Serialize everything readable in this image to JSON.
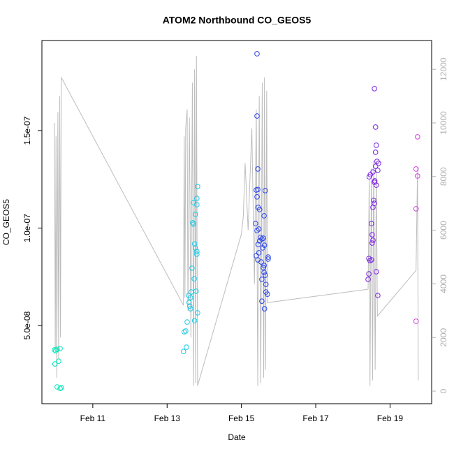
{
  "chart_data": {
    "type": "scatter",
    "title": "ATOM2 Northbound CO_GEOS5",
    "x_label": "Date",
    "y_label": "CO_GEOS5",
    "xlim": [
      9.63,
      20.12
    ],
    "xticks": [
      {
        "value": 11,
        "label": "Feb 11"
      },
      {
        "value": 13,
        "label": "Feb 13"
      },
      {
        "value": 15,
        "label": "Feb 15"
      },
      {
        "value": 17,
        "label": "Feb 17"
      },
      {
        "value": 19,
        "label": "Feb 19"
      }
    ],
    "ylim": [
      9.9e-09,
      1.962e-07
    ],
    "yticks": [
      {
        "value": 5e-08,
        "label": "5.0e-08"
      },
      {
        "value": 1e-07,
        "label": "1.0e-07"
      },
      {
        "value": 1.5e-07,
        "label": "1.5e-07"
      }
    ],
    "y2lim": [
      -469,
      13073
    ],
    "y2ticks": [
      0,
      2000,
      4000,
      6000,
      8000,
      10000,
      12000
    ],
    "y2_tick_color": "#b0b0b0",
    "series": [
      {
        "axis": "y2",
        "color": "#bdbdbd",
        "x": [
          9.97,
          9.99,
          10.01,
          10.03,
          10.06,
          10.08,
          10.11,
          10.13,
          10.15,
          13.44,
          13.46,
          13.48,
          13.5,
          13.54,
          13.56,
          13.6,
          13.64,
          13.68,
          13.71,
          13.74,
          13.77,
          13.79,
          13.82,
          15.0,
          15.05,
          15.1,
          15.18,
          15.28,
          15.35,
          15.4,
          15.44,
          15.48,
          15.52,
          15.56,
          15.6,
          15.62,
          15.65,
          15.68,
          15.7,
          18.41,
          18.44,
          18.46,
          18.5,
          18.53,
          18.56,
          18.6,
          18.63,
          18.66,
          19.7,
          19.74,
          19.76
        ],
        "values": [
          10000,
          1500,
          9500,
          500,
          10400,
          1200,
          11000,
          2000,
          11700,
          3200,
          9500,
          3500,
          9800,
          10500,
          3000,
          10200,
          2000,
          11500,
          200,
          12000,
          300,
          12500,
          200,
          5860,
          6500,
          8500,
          6000,
          9800,
          4000,
          10500,
          200,
          11000,
          300,
          11500,
          500,
          11700,
          800,
          11200,
          3300,
          3800,
          7900,
          200,
          8300,
          400,
          8600,
          800,
          8200,
          2800,
          4500,
          8300,
          400
        ]
      },
      {
        "color": "#00e6b8",
        "x": [
          9.97,
          10.0,
          10.04,
          9.98,
          10.08,
          10.12,
          10.04,
          10.12,
          10.15
        ],
        "values": [
          3.75e-08,
          3.71e-08,
          3.78e-08,
          3.03e-08,
          3.17e-08,
          3.82e-08,
          1.85e-08,
          1.77e-08,
          1.81e-08
        ]
      },
      {
        "color": "#1ec8e6",
        "x": [
          13.44,
          13.46,
          13.5,
          13.52,
          13.54,
          13.58,
          13.59,
          13.63,
          13.61,
          13.63,
          13.65,
          13.67,
          13.69,
          13.71,
          13.71,
          13.73,
          13.74,
          13.74,
          13.76,
          13.76,
          13.78,
          13.8,
          13.8,
          13.8,
          13.82,
          13.82,
          13.8
        ],
        "values": [
          3.67e-08,
          4.68e-08,
          4.72e-08,
          3.89e-08,
          5.18e-08,
          6.54e-08,
          6.18e-08,
          6.43e-08,
          6e-08,
          5.86e-08,
          6.72e-08,
          7.94e-08,
          1.027e-07,
          1.02e-07,
          1.13e-07,
          7.4e-08,
          5.25e-08,
          9.19e-08,
          8.98e-08,
          1.07e-07,
          6.76e-08,
          1.152e-07,
          8.66e-08,
          1.12e-07,
          1.213e-07,
          5.65e-08,
          8.8e-08
        ]
      },
      {
        "color": "#2a44ea",
        "x": [
          15.42,
          15.42,
          15.44,
          15.4,
          15.44,
          15.42,
          15.45,
          15.49,
          15.38,
          15.42,
          15.47,
          15.51,
          15.45,
          15.49,
          15.55,
          15.59,
          15.57,
          15.47,
          15.44,
          15.4,
          15.53,
          15.59,
          15.61,
          15.64,
          15.55,
          15.62,
          15.61,
          15.66,
          15.7,
          15.66,
          15.72,
          15.72,
          15.64,
          15.61,
          15.55,
          15.62
        ],
        "values": [
          1.894e-07,
          1.575e-07,
          1.303e-07,
          1.195e-07,
          1.198e-07,
          1.16e-07,
          1.106e-07,
          1.095e-07,
          1.023e-07,
          9.87e-08,
          9.95e-08,
          9.52e-08,
          9.16e-08,
          9.34e-08,
          9.44e-08,
          9.48e-08,
          8.98e-08,
          8.73e-08,
          8.37e-08,
          8.58e-08,
          8.26e-08,
          7.97e-08,
          7.72e-08,
          7.58e-08,
          7.37e-08,
          9.12e-08,
          8.08e-08,
          7.11e-08,
          6.61e-08,
          6.72e-08,
          8.51e-08,
          8.41e-08,
          1.192e-07,
          1.063e-07,
          6.25e-08,
          5.86e-08
        ]
      },
      {
        "color": "#7a22e0",
        "x": [
          18.58,
          18.61,
          18.63,
          18.61,
          18.65,
          18.69,
          18.61,
          18.67,
          18.47,
          18.54,
          18.44,
          18.59,
          18.58,
          18.63,
          18.56,
          18.58,
          18.54,
          18.5,
          18.52,
          18.54,
          18.52,
          18.43,
          18.46,
          18.5,
          18.43,
          18.41,
          18.63,
          18.67
        ],
        "values": [
          1.715e-07,
          1.518e-07,
          1.425e-07,
          1.389e-07,
          1.342e-07,
          1.332e-07,
          1.317e-07,
          1.296e-07,
          1.274e-07,
          1.288e-07,
          1.263e-07,
          1.242e-07,
          1.235e-07,
          1.22e-07,
          1.142e-07,
          1.127e-07,
          1.106e-07,
          1.023e-07,
          9.66e-08,
          9.37e-08,
          9.23e-08,
          8.44e-08,
          8.33e-08,
          8.37e-08,
          7.65e-08,
          7.37e-08,
          7.76e-08,
          6.54e-08
        ]
      },
      {
        "color": "#d23fe0",
        "x": [
          19.74,
          19.7,
          19.74,
          19.7,
          19.7
        ],
        "values": [
          1.468e-07,
          1.303e-07,
          1.267e-07,
          1.099e-07,
          5.22e-08
        ]
      }
    ]
  }
}
